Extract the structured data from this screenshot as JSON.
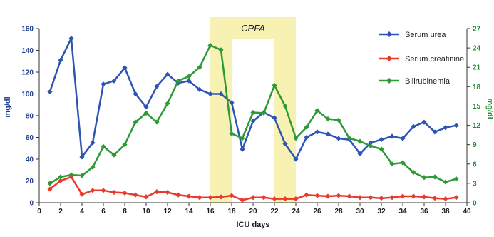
{
  "chart_data": {
    "type": "line",
    "xlabel": "ICU days",
    "ylabel_left": "mg/dl",
    "ylabel_right": "mg/dl",
    "x_ticks": [
      0,
      2,
      4,
      6,
      8,
      10,
      12,
      14,
      16,
      18,
      20,
      22,
      24,
      26,
      28,
      30,
      32,
      34,
      36,
      38,
      40
    ],
    "y_left_ticks": [
      0,
      20,
      40,
      60,
      80,
      100,
      120,
      140,
      160
    ],
    "y_right_ticks": [
      0,
      3,
      6,
      9,
      12,
      15,
      18,
      21,
      24,
      27
    ],
    "xlim": [
      0,
      40
    ],
    "ylim_left": [
      0,
      160
    ],
    "ylim_right": [
      0,
      27
    ],
    "grid": false,
    "legend_position": "top-right",
    "annotations": [
      {
        "text": "CPFA",
        "bands": [
          [
            16,
            18
          ],
          [
            22,
            24
          ]
        ]
      }
    ],
    "series": [
      {
        "name": "Serum urea",
        "axis": "left",
        "color": "#2e54b4",
        "marker": "diamond",
        "x": [
          1,
          2,
          3,
          4,
          5,
          6,
          7,
          8,
          9,
          10,
          11,
          12,
          13,
          14,
          15,
          16,
          17,
          18,
          19,
          20,
          21,
          22,
          23,
          24,
          25,
          26,
          27,
          28,
          29,
          30,
          31,
          32,
          33,
          34,
          35,
          36,
          37,
          38,
          39
        ],
        "values": [
          102,
          131,
          151,
          42,
          55,
          109,
          112,
          124,
          100,
          88,
          107,
          118,
          110,
          112,
          104,
          100,
          100,
          92,
          49,
          75,
          83,
          78,
          54,
          40,
          60,
          65,
          63,
          59,
          58,
          45,
          55,
          58,
          61,
          59,
          70,
          74,
          65,
          69,
          71
        ]
      },
      {
        "name": "Serum creatinine",
        "axis": "right",
        "color": "#e83a2c",
        "marker": "diamond",
        "x": [
          1,
          2,
          3,
          4,
          5,
          6,
          7,
          8,
          9,
          10,
          11,
          12,
          13,
          14,
          15,
          16,
          17,
          18,
          19,
          20,
          21,
          22,
          23,
          24,
          25,
          26,
          27,
          28,
          29,
          30,
          31,
          32,
          33,
          34,
          35,
          36,
          37,
          38,
          39
        ],
        "values": [
          2.1,
          3.4,
          4.0,
          1.3,
          1.9,
          1.9,
          1.6,
          1.5,
          1.2,
          0.9,
          1.7,
          1.6,
          1.2,
          1.0,
          0.8,
          0.8,
          0.9,
          1.1,
          0.4,
          0.8,
          0.8,
          0.6,
          0.6,
          0.6,
          1.2,
          1.1,
          1.0,
          1.1,
          1.0,
          0.8,
          0.8,
          0.7,
          0.8,
          1.0,
          1.0,
          0.9,
          0.7,
          0.6,
          0.8
        ]
      },
      {
        "name": "Bilirubinemia",
        "axis": "right",
        "color": "#2e9a36",
        "marker": "diamond",
        "x": [
          1,
          2,
          3,
          4,
          5,
          6,
          7,
          8,
          9,
          10,
          11,
          12,
          13,
          14,
          15,
          16,
          17,
          18,
          19,
          20,
          21,
          22,
          23,
          24,
          25,
          26,
          27,
          28,
          29,
          30,
          31,
          32,
          33,
          34,
          35,
          36,
          37,
          38,
          39
        ],
        "values": [
          3.0,
          4.0,
          4.3,
          4.2,
          5.5,
          8.7,
          7.4,
          9.0,
          12.5,
          13.9,
          12.5,
          15.4,
          18.9,
          19.6,
          21.0,
          24.4,
          23.7,
          10.7,
          10.0,
          14.0,
          13.9,
          18.2,
          15.0,
          10.0,
          11.7,
          14.3,
          13.0,
          12.8,
          10.0,
          9.5,
          8.8,
          8.3,
          6.0,
          6.2,
          4.7,
          3.9,
          4.0,
          3.2,
          3.7
        ]
      }
    ]
  }
}
